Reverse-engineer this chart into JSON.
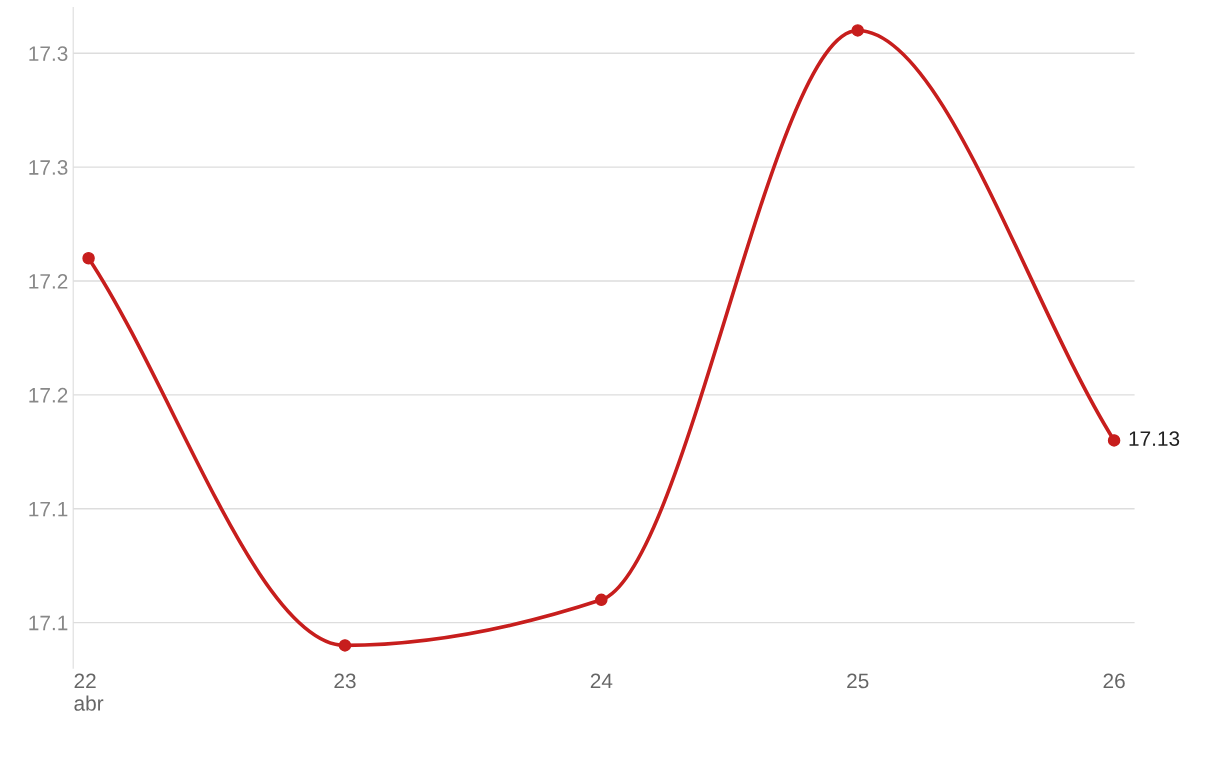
{
  "chart_data": {
    "type": "line",
    "categories": [
      "22\nabr",
      "23",
      "24",
      "25",
      "26"
    ],
    "series": [
      {
        "color": "#c71e1d",
        "values": [
          17.21,
          17.04,
          17.06,
          17.31,
          17.13
        ],
        "value_labels": [
          null,
          null,
          null,
          null,
          "17.13"
        ]
      }
    ],
    "ylim": [
      17.03,
      17.32
    ],
    "yticks": [
      {
        "value": 17.05,
        "label": "17.1"
      },
      {
        "value": 17.1,
        "label": "17.1"
      },
      {
        "value": 17.15,
        "label": "17.2"
      },
      {
        "value": 17.2,
        "label": "17.2"
      },
      {
        "value": 17.25,
        "label": "17.3"
      },
      {
        "value": 17.3,
        "label": "17.3"
      }
    ],
    "grid": "y",
    "marker": "circle",
    "line_style": "solid"
  }
}
